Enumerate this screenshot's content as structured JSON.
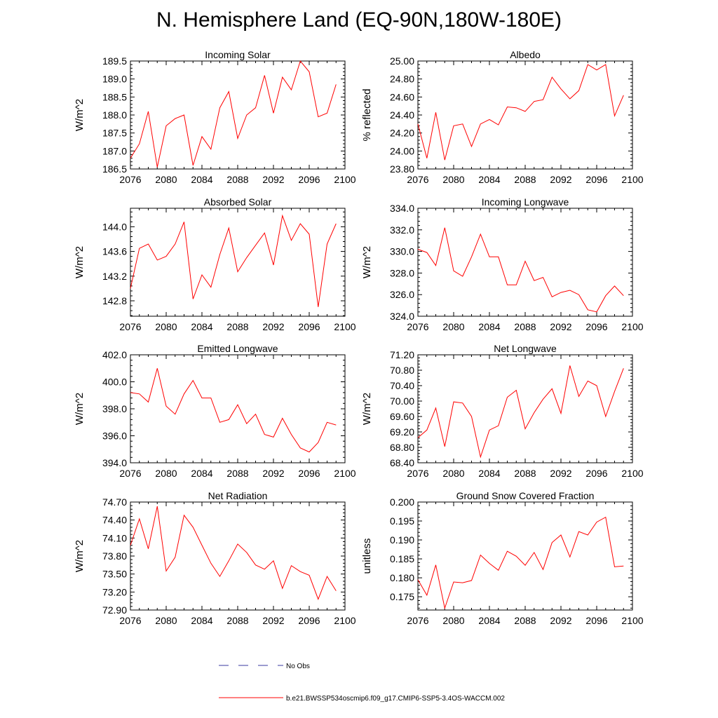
{
  "title": "N. Hemisphere Land (EQ-90N,180W-180E)",
  "colors": {
    "series": "#ff0000",
    "obs": "#3a3aa0",
    "axis": "#000000"
  },
  "chart_data": [
    {
      "type": "line",
      "title": "Incoming Solar",
      "ylabel": "W/m^2",
      "xlim": [
        2076,
        2100
      ],
      "xticks": [
        "2076",
        "2080",
        "2084",
        "2088",
        "2092",
        "2096",
        "2100"
      ],
      "ylim": [
        186.5,
        189.5
      ],
      "yticks": [
        "186.5",
        "187.0",
        "187.5",
        "188.0",
        "188.5",
        "189.0",
        "189.5"
      ],
      "x": [
        2076,
        2077,
        2078,
        2079,
        2080,
        2081,
        2082,
        2083,
        2084,
        2085,
        2086,
        2087,
        2088,
        2089,
        2090,
        2091,
        2092,
        2093,
        2094,
        2095,
        2096,
        2097,
        2098,
        2099
      ],
      "values": [
        186.8,
        187.2,
        188.1,
        186.55,
        187.7,
        187.9,
        188.0,
        186.6,
        187.4,
        187.05,
        188.2,
        188.65,
        187.35,
        188.0,
        188.2,
        189.1,
        188.05,
        189.05,
        188.7,
        189.5,
        189.2,
        187.95,
        188.05,
        188.85
      ]
    },
    {
      "type": "line",
      "title": "Albedo",
      "ylabel": "% reflected",
      "xlim": [
        2076,
        2100
      ],
      "xticks": [
        "2076",
        "2080",
        "2084",
        "2088",
        "2092",
        "2096",
        "2100"
      ],
      "ylim": [
        23.8,
        25.0
      ],
      "yticks": [
        "23.80",
        "24.00",
        "24.20",
        "24.40",
        "24.60",
        "24.80",
        "25.00"
      ],
      "x": [
        2076,
        2077,
        2078,
        2079,
        2080,
        2081,
        2082,
        2083,
        2084,
        2085,
        2086,
        2087,
        2088,
        2089,
        2090,
        2091,
        2092,
        2093,
        2094,
        2095,
        2096,
        2097,
        2098,
        2099
      ],
      "values": [
        24.3,
        23.92,
        24.43,
        23.9,
        24.28,
        24.3,
        24.05,
        24.3,
        24.35,
        24.29,
        24.49,
        24.48,
        24.44,
        24.55,
        24.57,
        24.82,
        24.69,
        24.58,
        24.67,
        24.96,
        24.9,
        24.96,
        24.39,
        24.62
      ]
    },
    {
      "type": "line",
      "title": "Absorbed Solar",
      "ylabel": "W/m^2",
      "xlim": [
        2076,
        2100
      ],
      "xticks": [
        "2076",
        "2080",
        "2084",
        "2088",
        "2092",
        "2096",
        "2100"
      ],
      "ylim": [
        142.55,
        144.3
      ],
      "yticks": [
        "142.8",
        "143.2",
        "143.6",
        "144.0"
      ],
      "x": [
        2076,
        2077,
        2078,
        2079,
        2080,
        2081,
        2082,
        2083,
        2084,
        2085,
        2086,
        2087,
        2088,
        2089,
        2090,
        2091,
        2092,
        2093,
        2094,
        2095,
        2096,
        2097,
        2098,
        2099
      ],
      "values": [
        143.0,
        143.65,
        143.72,
        143.46,
        143.52,
        143.72,
        144.08,
        142.83,
        143.22,
        143.02,
        143.55,
        143.98,
        143.27,
        143.5,
        143.7,
        143.9,
        143.38,
        144.18,
        143.78,
        144.05,
        143.88,
        142.7,
        143.72,
        144.05
      ]
    },
    {
      "type": "line",
      "title": "Incoming Longwave",
      "ylabel": "W/m^2",
      "xlim": [
        2076,
        2100
      ],
      "xticks": [
        "2076",
        "2080",
        "2084",
        "2088",
        "2092",
        "2096",
        "2100"
      ],
      "ylim": [
        324.0,
        334.0
      ],
      "yticks": [
        "324.0",
        "326.0",
        "328.0",
        "330.0",
        "332.0",
        "334.0"
      ],
      "x": [
        2076,
        2077,
        2078,
        2079,
        2080,
        2081,
        2082,
        2083,
        2084,
        2085,
        2086,
        2087,
        2088,
        2089,
        2090,
        2091,
        2092,
        2093,
        2094,
        2095,
        2096,
        2097,
        2098,
        2099
      ],
      "values": [
        330.2,
        329.9,
        328.7,
        332.2,
        328.2,
        327.7,
        329.5,
        331.6,
        329.5,
        329.5,
        326.9,
        326.9,
        329.1,
        327.3,
        327.6,
        325.8,
        326.2,
        326.4,
        326.0,
        324.6,
        324.4,
        325.9,
        326.8,
        325.9
      ]
    },
    {
      "type": "line",
      "title": "Emitted Longwave",
      "ylabel": "W/m^2",
      "xlim": [
        2076,
        2100
      ],
      "xticks": [
        "2076",
        "2080",
        "2084",
        "2088",
        "2092",
        "2096",
        "2100"
      ],
      "ylim": [
        394.0,
        402.0
      ],
      "yticks": [
        "394.0",
        "396.0",
        "398.0",
        "400.0",
        "402.0"
      ],
      "x": [
        2076,
        2077,
        2078,
        2079,
        2080,
        2081,
        2082,
        2083,
        2084,
        2085,
        2086,
        2087,
        2088,
        2089,
        2090,
        2091,
        2092,
        2093,
        2094,
        2095,
        2096,
        2097,
        2098,
        2099
      ],
      "values": [
        399.2,
        399.1,
        398.5,
        401.0,
        398.2,
        397.6,
        399.1,
        400.1,
        398.8,
        398.8,
        397.0,
        397.2,
        398.3,
        396.9,
        397.6,
        396.1,
        395.9,
        397.3,
        396.1,
        395.1,
        394.8,
        395.5,
        397.0,
        396.8
      ]
    },
    {
      "type": "line",
      "title": "Net Longwave",
      "ylabel": "W/m^2",
      "xlim": [
        2076,
        2100
      ],
      "xticks": [
        "2076",
        "2080",
        "2084",
        "2088",
        "2092",
        "2096",
        "2100"
      ],
      "ylim": [
        68.4,
        71.2
      ],
      "yticks": [
        "68.40",
        "68.80",
        "69.20",
        "69.60",
        "70.00",
        "70.40",
        "70.80",
        "71.20"
      ],
      "x": [
        2076,
        2077,
        2078,
        2079,
        2080,
        2081,
        2082,
        2083,
        2084,
        2085,
        2086,
        2087,
        2088,
        2089,
        2090,
        2091,
        2092,
        2093,
        2094,
        2095,
        2096,
        2097,
        2098,
        2099
      ],
      "values": [
        69.05,
        69.25,
        69.82,
        68.82,
        69.98,
        69.95,
        69.6,
        68.55,
        69.25,
        69.36,
        70.1,
        70.28,
        69.28,
        69.7,
        70.05,
        70.32,
        69.68,
        70.92,
        70.12,
        70.52,
        70.4,
        69.6,
        70.25,
        70.85
      ]
    },
    {
      "type": "line",
      "title": "Net Radiation",
      "ylabel": "W/m^2",
      "xlim": [
        2076,
        2100
      ],
      "xticks": [
        "2076",
        "2080",
        "2084",
        "2088",
        "2092",
        "2096",
        "2100"
      ],
      "ylim": [
        72.9,
        74.7
      ],
      "yticks": [
        "72.90",
        "73.20",
        "73.50",
        "73.80",
        "74.10",
        "74.40",
        "74.70"
      ],
      "x": [
        2076,
        2077,
        2078,
        2079,
        2080,
        2081,
        2082,
        2083,
        2084,
        2085,
        2086,
        2087,
        2088,
        2089,
        2090,
        2091,
        2092,
        2093,
        2094,
        2095,
        2096,
        2097,
        2098,
        2099
      ],
      "values": [
        73.98,
        74.42,
        73.92,
        74.63,
        73.55,
        73.78,
        74.48,
        74.28,
        73.98,
        73.68,
        73.46,
        73.72,
        74.0,
        73.86,
        73.65,
        73.58,
        73.72,
        73.26,
        73.64,
        73.54,
        73.48,
        73.08,
        73.46,
        73.22
      ]
    },
    {
      "type": "line",
      "title": "Ground Snow Covered Fraction",
      "ylabel": "unitless",
      "xlim": [
        2076,
        2100
      ],
      "xticks": [
        "2076",
        "2080",
        "2084",
        "2088",
        "2092",
        "2096",
        "2100"
      ],
      "ylim": [
        0.1715,
        0.2
      ],
      "yticks": [
        "0.175",
        "0.180",
        "0.185",
        "0.190",
        "0.195",
        "0.200"
      ],
      "x": [
        2076,
        2077,
        2078,
        2079,
        2080,
        2081,
        2082,
        2083,
        2084,
        2085,
        2086,
        2087,
        2088,
        2089,
        2090,
        2091,
        2092,
        2093,
        2094,
        2095,
        2096,
        2097,
        2098,
        2099
      ],
      "values": [
        0.1795,
        0.1754,
        0.1834,
        0.172,
        0.1789,
        0.1787,
        0.1793,
        0.186,
        0.1838,
        0.182,
        0.187,
        0.1857,
        0.1833,
        0.1867,
        0.1822,
        0.1893,
        0.1913,
        0.1855,
        0.1922,
        0.1913,
        0.1947,
        0.196,
        0.1829,
        0.1831
      ]
    }
  ],
  "legend": {
    "obs_label": "No Obs",
    "model_label": "b.e21.BWSSP534oscmip6.f09_g17.CMIP6-SSP5-3.4OS-WACCM.002"
  }
}
